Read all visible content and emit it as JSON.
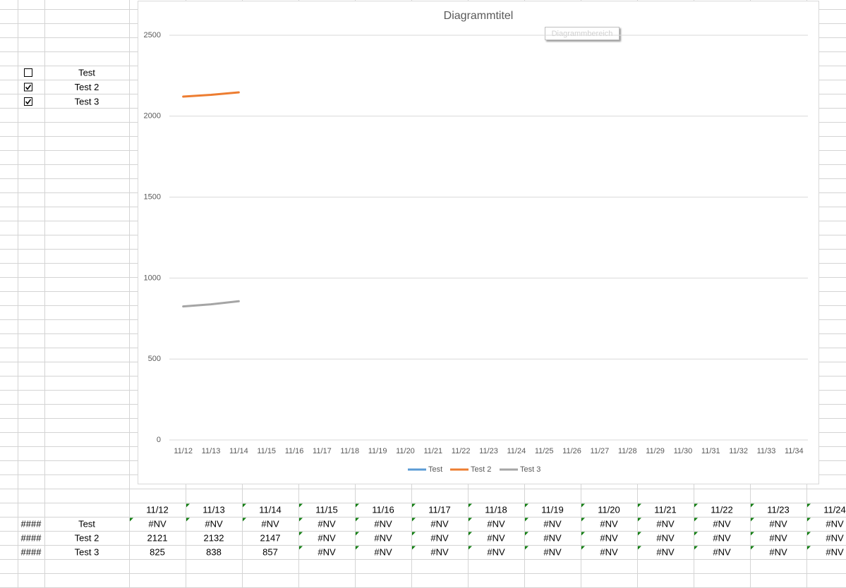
{
  "chart_data": {
    "type": "line",
    "title": "Diagrammtitel",
    "tooltip": "Diagrammbereich",
    "categories": [
      "11/12",
      "11/13",
      "11/14",
      "11/15",
      "11/16",
      "11/17",
      "11/18",
      "11/19",
      "11/20",
      "11/21",
      "11/22",
      "11/23",
      "11/24",
      "11/25",
      "11/26",
      "11/27",
      "11/28",
      "11/29",
      "11/30",
      "11/31",
      "11/32",
      "11/33",
      "11/34"
    ],
    "series": [
      {
        "name": "Test",
        "color": "#5b9bd5",
        "values": [
          null,
          null,
          null,
          null,
          null,
          null,
          null,
          null,
          null,
          null,
          null,
          null,
          null,
          null,
          null,
          null,
          null,
          null,
          null,
          null,
          null,
          null,
          null
        ]
      },
      {
        "name": "Test 2",
        "color": "#ed7d31",
        "values": [
          2121,
          2132,
          2147,
          null,
          null,
          null,
          null,
          null,
          null,
          null,
          null,
          null,
          null,
          null,
          null,
          null,
          null,
          null,
          null,
          null,
          null,
          null,
          null
        ]
      },
      {
        "name": "Test 3",
        "color": "#a5a5a5",
        "values": [
          825,
          838,
          857,
          null,
          null,
          null,
          null,
          null,
          null,
          null,
          null,
          null,
          null,
          null,
          null,
          null,
          null,
          null,
          null,
          null,
          null,
          null,
          null
        ]
      }
    ],
    "ylim": [
      0,
      2500
    ],
    "yticks": [
      0,
      500,
      1000,
      1500,
      2000,
      2500
    ],
    "grid": true,
    "legend": "bottom"
  },
  "checkboxes": [
    {
      "label": "Test",
      "checked": false
    },
    {
      "label": "Test 2",
      "checked": true
    },
    {
      "label": "Test 3",
      "checked": true
    }
  ],
  "table": {
    "header": [
      "11/12",
      "11/13",
      "11/14",
      "11/15",
      "11/16",
      "11/17",
      "11/18",
      "11/19",
      "11/20",
      "11/21",
      "11/22",
      "11/23",
      "11/24"
    ],
    "rows": [
      [
        "####",
        "Test",
        "#NV",
        "#NV",
        "#NV",
        "#NV",
        "#NV",
        "#NV",
        "#NV",
        "#NV",
        "#NV",
        "#NV",
        "#NV",
        "#NV",
        "#NV"
      ],
      [
        "####",
        "Test 2",
        "2121",
        "2132",
        "2147",
        "#NV",
        "#NV",
        "#NV",
        "#NV",
        "#NV",
        "#NV",
        "#NV",
        "#NV",
        "#NV",
        "#NV"
      ],
      [
        "####",
        "Test 3",
        "825",
        "838",
        "857",
        "#NV",
        "#NV",
        "#NV",
        "#NV",
        "#NV",
        "#NV",
        "#NV",
        "#NV",
        "#NV",
        "#NV"
      ]
    ]
  }
}
